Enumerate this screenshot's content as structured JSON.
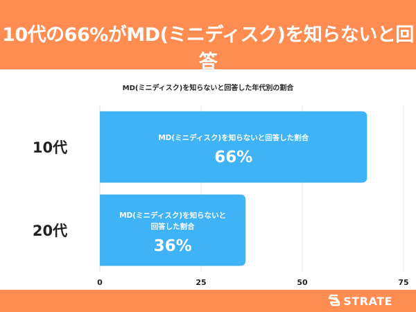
{
  "header": {
    "title": "10代の66%がMD(ミニディスク)を知らないと回答"
  },
  "brand": {
    "name": "STRATE",
    "icon": "strate-logo-icon"
  },
  "colors": {
    "accent": "#ff8c50",
    "bar": "#3fb3f5",
    "grid": "#e6e6e6"
  },
  "chart_data": {
    "type": "bar",
    "orientation": "horizontal",
    "title": "MD(ミニディスク)を知らないと回答した年代別の割合",
    "categories": [
      "10代",
      "20代"
    ],
    "values": [
      66,
      36
    ],
    "bar_labels": [
      [
        "MD(ミニディスク)を知らないと回答した割合"
      ],
      [
        "MD(ミニディスク)を知らないと",
        "回答した割合"
      ]
    ],
    "value_labels": [
      "66%",
      "36%"
    ],
    "xlim": [
      0,
      75
    ],
    "xticks": [
      0,
      25,
      50,
      75
    ],
    "grid": true,
    "legend": "none"
  }
}
